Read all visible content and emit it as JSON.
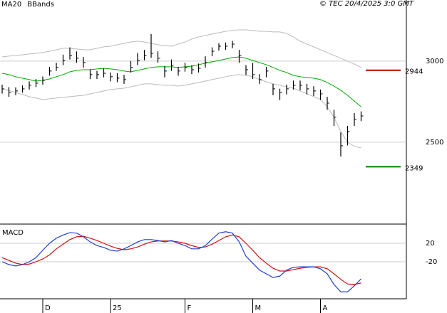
{
  "chart_data": [
    {
      "type": "ohlc",
      "legend": [
        {
          "name": "MA20",
          "color": "#00aa00"
        },
        {
          "name": "BBands",
          "color": "#bbbbbb"
        }
      ],
      "annotation": "© TEC 20/4/2025 3:0 GMT",
      "categories": [
        null,
        null,
        null,
        null,
        null,
        null,
        "D",
        null,
        null,
        null,
        null,
        null,
        null,
        null,
        null,
        null,
        "25",
        null,
        null,
        null,
        null,
        null,
        null,
        null,
        null,
        null,
        null,
        "F",
        null,
        null,
        null,
        null,
        null,
        null,
        null,
        null,
        null,
        "M",
        null,
        null,
        null,
        null,
        null,
        null,
        null,
        null,
        null,
        "A",
        null,
        null,
        null,
        null,
        null,
        null
      ],
      "ylim": [
        1995,
        3377
      ],
      "yticks": [
        2500,
        3000
      ],
      "grid": true,
      "levels": [
        {
          "value": 2944,
          "color": "#c00000"
        },
        {
          "value": 2349,
          "color": "#008000"
        }
      ],
      "series": [
        {
          "name": "high",
          "values": [
            2855,
            2840,
            2838,
            2850,
            2875,
            2890,
            2905,
            2965,
            2990,
            3040,
            3085,
            3060,
            3025,
            2950,
            2940,
            2955,
            2930,
            2925,
            2915,
            3000,
            3050,
            3070,
            3167,
            3060,
            2970,
            3010,
            2965,
            2990,
            2975,
            2985,
            3030,
            3085,
            3110,
            3115,
            3125,
            3070,
            2975,
            2990,
            2920,
            2965,
            2860,
            2830,
            2855,
            2880,
            2880,
            2860,
            2845,
            2825,
            2780,
            2700,
            2560,
            2600,
            2680,
            2690
          ]
        },
        {
          "name": "low",
          "values": [
            2800,
            2780,
            2790,
            2805,
            2825,
            2840,
            2855,
            2910,
            2940,
            2975,
            3010,
            2990,
            2960,
            2890,
            2890,
            2900,
            2875,
            2870,
            2860,
            2930,
            2975,
            3005,
            3020,
            2990,
            2900,
            2940,
            2910,
            2935,
            2920,
            2930,
            2960,
            3030,
            3065,
            3070,
            3080,
            2990,
            2915,
            2890,
            2860,
            2900,
            2790,
            2760,
            2795,
            2825,
            2820,
            2795,
            2785,
            2760,
            2700,
            2600,
            2412,
            2480,
            2600,
            2630
          ]
        },
        {
          "name": "close",
          "values": [
            2829,
            2807,
            2816,
            2829,
            2851,
            2864,
            2882,
            2939,
            2961,
            3004,
            3035,
            3018,
            2991,
            2917,
            2917,
            2925,
            2904,
            2895,
            2886,
            2961,
            3004,
            3035,
            3048,
            3018,
            2939,
            2974,
            2939,
            2961,
            2947,
            2956,
            2991,
            3061,
            3092,
            3092,
            3105,
            3035,
            2947,
            2917,
            2886,
            2939,
            2829,
            2807,
            2829,
            2851,
            2851,
            2829,
            2816,
            2798,
            2741,
            2654,
            2478,
            2566,
            2640,
            2662
          ]
        },
        {
          "name": "MA20",
          "color": "#00aa00",
          "values": [
            2925,
            2917,
            2904,
            2895,
            2886,
            2877,
            2882,
            2890,
            2904,
            2917,
            2934,
            2943,
            2947,
            2947,
            2952,
            2956,
            2952,
            2947,
            2939,
            2934,
            2943,
            2952,
            2961,
            2965,
            2965,
            2965,
            2961,
            2965,
            2969,
            2978,
            2987,
            2996,
            3004,
            3013,
            3022,
            3026,
            3018,
            3004,
            2991,
            2978,
            2961,
            2943,
            2930,
            2912,
            2904,
            2899,
            2895,
            2886,
            2868,
            2846,
            2820,
            2789,
            2754,
            2719
          ]
        },
        {
          "name": "BBands",
          "color": "#bbbbbb",
          "values": [
            3026,
            3031,
            3035,
            3039,
            3044,
            3048,
            3053,
            3061,
            3070,
            3079,
            3079,
            3075,
            3070,
            3070,
            3079,
            3088,
            3092,
            3101,
            3110,
            3118,
            3123,
            3118,
            3110,
            3101,
            3096,
            3092,
            3105,
            3118,
            3136,
            3149,
            3158,
            3167,
            3175,
            3184,
            3189,
            3193,
            3193,
            3189,
            3184,
            3184,
            3180,
            3180,
            3171,
            3149,
            3123,
            3105,
            3088,
            3070,
            3053,
            3035,
            3018,
            3000,
            2982,
            2961
          ]
        },
        {
          "name": "BBands",
          "color": "#bbbbbb",
          "values": [
            2829,
            2820,
            2807,
            2794,
            2781,
            2772,
            2763,
            2768,
            2772,
            2776,
            2781,
            2785,
            2789,
            2798,
            2807,
            2816,
            2825,
            2829,
            2833,
            2842,
            2851,
            2860,
            2860,
            2855,
            2851,
            2851,
            2846,
            2851,
            2860,
            2868,
            2877,
            2886,
            2895,
            2904,
            2912,
            2917,
            2912,
            2904,
            2886,
            2873,
            2860,
            2851,
            2842,
            2833,
            2816,
            2798,
            2781,
            2763,
            2719,
            2654,
            2566,
            2500,
            2474,
            2465
          ]
        }
      ]
    },
    {
      "type": "line",
      "title": "MACD",
      "ylim": [
        -100,
        60
      ],
      "yticks": [
        20,
        -20
      ],
      "grid": true,
      "series": [
        {
          "name": "MACD",
          "color": "#1f3fd0",
          "values": [
            -20,
            -26,
            -29,
            -26,
            -20,
            -11,
            5,
            20,
            31,
            38,
            43,
            42,
            34,
            23,
            15,
            11,
            5,
            3,
            8,
            15,
            23,
            28,
            28,
            26,
            23,
            26,
            20,
            15,
            8,
            8,
            15,
            29,
            42,
            45,
            42,
            23,
            -8,
            -23,
            -38,
            -46,
            -54,
            -51,
            -38,
            -32,
            -31,
            -31,
            -31,
            -35,
            -46,
            -69,
            -85,
            -85,
            -72,
            -57
          ]
        },
        {
          "name": "Signal",
          "color": "#d01010",
          "values": [
            -11,
            -17,
            -23,
            -26,
            -25,
            -20,
            -14,
            -5,
            8,
            18,
            28,
            34,
            35,
            31,
            26,
            20,
            14,
            9,
            6,
            8,
            12,
            18,
            23,
            25,
            25,
            25,
            23,
            20,
            15,
            11,
            12,
            18,
            26,
            34,
            38,
            34,
            20,
            5,
            -11,
            -23,
            -34,
            -40,
            -40,
            -37,
            -34,
            -32,
            -31,
            -31,
            -35,
            -46,
            -58,
            -68,
            -69,
            -66
          ]
        }
      ]
    }
  ]
}
